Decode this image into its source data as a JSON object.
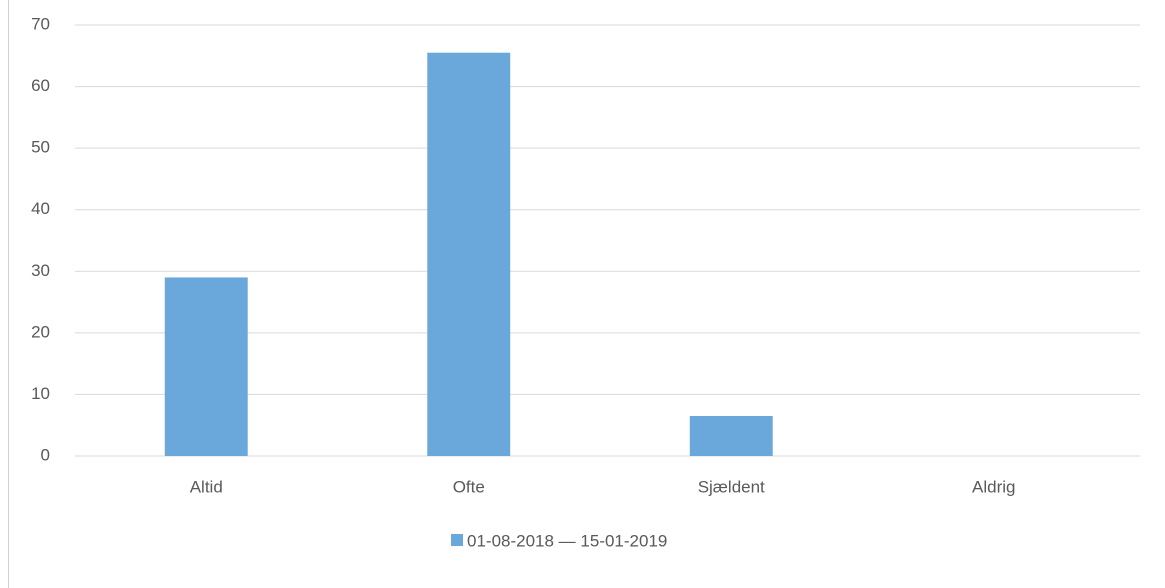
{
  "chart_data": {
    "type": "bar",
    "categories": [
      "Altid",
      "Ofte",
      "Sjældent",
      "Aldrig"
    ],
    "series": [
      {
        "name": "01-08-2018 — 15-01-2019",
        "color": "#6aa8db",
        "values": [
          29,
          65.5,
          6.5,
          0
        ]
      }
    ],
    "ylim": [
      0,
      70
    ],
    "yticks": [
      0,
      10,
      20,
      30,
      40,
      50,
      60,
      70
    ],
    "grid": true,
    "legend": "bottom"
  }
}
